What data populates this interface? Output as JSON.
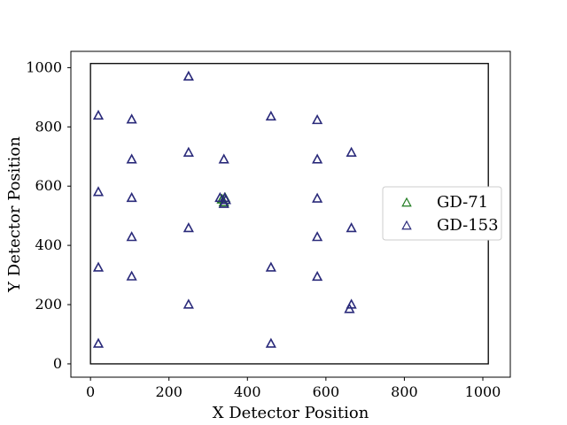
{
  "chart_data": {
    "type": "scatter",
    "title": "",
    "xlabel": "X Detector Position",
    "ylabel": "Y Detector Position",
    "xlim": [
      -50,
      1070
    ],
    "ylim": [
      -45,
      1055
    ],
    "xticks": [
      0,
      200,
      400,
      600,
      800,
      1000
    ],
    "yticks": [
      0,
      200,
      400,
      600,
      800,
      1000
    ],
    "grid": false,
    "legend_position": "center-right",
    "marker": "triangle-open",
    "inner_box": {
      "x": [
        0,
        1014
      ],
      "y": [
        0,
        1014
      ]
    },
    "series": [
      {
        "name": "GD-71",
        "color": "#1e7a1e",
        "points": [
          [
            335,
            555
          ],
          [
            340,
            545
          ],
          [
            343,
            560
          ]
        ]
      },
      {
        "name": "GD-153",
        "color": "#2a2a7a",
        "points": [
          [
            20,
            838
          ],
          [
            20,
            580
          ],
          [
            20,
            325
          ],
          [
            20,
            68
          ],
          [
            105,
            825
          ],
          [
            105,
            690
          ],
          [
            105,
            560
          ],
          [
            105,
            428
          ],
          [
            105,
            295
          ],
          [
            250,
            970
          ],
          [
            250,
            713
          ],
          [
            250,
            458
          ],
          [
            250,
            200
          ],
          [
            340,
            690
          ],
          [
            330,
            560
          ],
          [
            342,
            560
          ],
          [
            345,
            553
          ],
          [
            340,
            540
          ],
          [
            460,
            835
          ],
          [
            460,
            325
          ],
          [
            460,
            68
          ],
          [
            578,
            823
          ],
          [
            578,
            690
          ],
          [
            578,
            558
          ],
          [
            578,
            428
          ],
          [
            578,
            294
          ],
          [
            665,
            713
          ],
          [
            665,
            458
          ],
          [
            665,
            200
          ],
          [
            660,
            185
          ]
        ]
      }
    ]
  }
}
